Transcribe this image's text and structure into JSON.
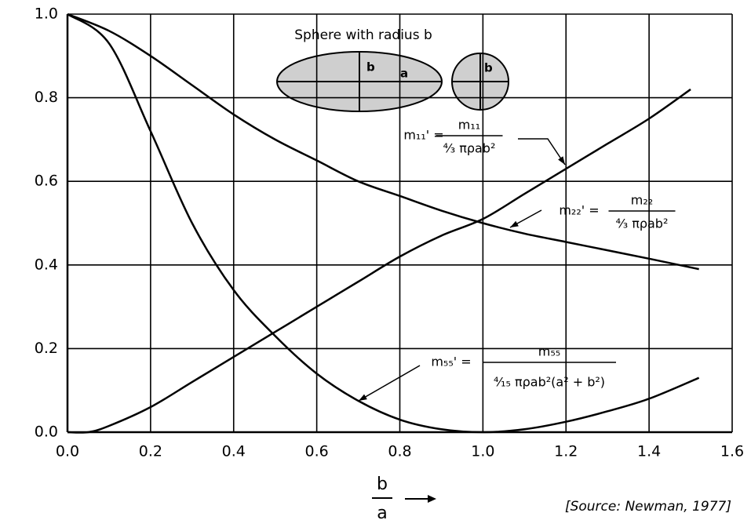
{
  "chart_data": {
    "type": "line",
    "title": "Sphere with radius b",
    "diagram_labels": {
      "ellipse_b": "b",
      "ellipse_a": "a",
      "circle_b": "b"
    },
    "xlabel": {
      "numerator": "b",
      "denominator": "a"
    },
    "source": "[Source: Newman, 1977]",
    "xlim": [
      0,
      1.6
    ],
    "ylim": [
      0,
      1.0
    ],
    "xticks": [
      {
        "value": 0,
        "label": "0.0"
      },
      0.2,
      0.4,
      0.6,
      0.8,
      {
        "value": 1,
        "label": "1.0"
      },
      1.2,
      1.4,
      1.6
    ],
    "yticks": [
      {
        "value": 0,
        "label": "0.0"
      },
      0.2,
      0.4,
      0.6,
      0.8,
      {
        "value": 1,
        "label": "1.0"
      }
    ],
    "grid": true,
    "series": [
      {
        "name": "m₁₁'",
        "color": "#000000",
        "equation": {
          "lhs": "m₁₁' =",
          "numerator": "m₁₁",
          "denominator": "⁴⁄₃ πρab²"
        },
        "x": [
          0,
          0.05,
          0.1,
          0.2,
          0.3,
          0.4,
          0.5,
          0.6,
          0.7,
          0.8,
          0.9,
          1.0,
          1.1,
          1.2,
          1.3,
          1.4,
          1.5
        ],
        "values": [
          0,
          0,
          0.015,
          0.06,
          0.12,
          0.18,
          0.24,
          0.3,
          0.36,
          0.42,
          0.47,
          0.51,
          0.57,
          0.63,
          0.69,
          0.75,
          0.82
        ]
      },
      {
        "name": "m₂₂'",
        "color": "#000000",
        "equation": {
          "lhs": "m₂₂' =",
          "numerator": "m₂₂",
          "denominator": "⁴⁄₃ πρab²"
        },
        "x": [
          0,
          0.1,
          0.2,
          0.3,
          0.4,
          0.5,
          0.6,
          0.7,
          0.8,
          0.9,
          1.0,
          1.1,
          1.2,
          1.3,
          1.4,
          1.52
        ],
        "values": [
          1.0,
          0.96,
          0.9,
          0.83,
          0.76,
          0.7,
          0.65,
          0.6,
          0.565,
          0.53,
          0.5,
          0.475,
          0.455,
          0.435,
          0.415,
          0.39
        ]
      },
      {
        "name": "m₅₅'",
        "color": "#000000",
        "equation": {
          "lhs": "m₅₅' =",
          "numerator": "m₅₅",
          "denominator": "⁴⁄₁₅ πρab²(a² + b²)"
        },
        "x": [
          0,
          0.1,
          0.2,
          0.3,
          0.4,
          0.5,
          0.6,
          0.7,
          0.8,
          0.9,
          1.0,
          1.1,
          1.2,
          1.3,
          1.4,
          1.52
        ],
        "values": [
          1.0,
          0.93,
          0.72,
          0.5,
          0.34,
          0.23,
          0.14,
          0.075,
          0.03,
          0.007,
          0,
          0.007,
          0.025,
          0.05,
          0.08,
          0.13
        ]
      }
    ]
  }
}
